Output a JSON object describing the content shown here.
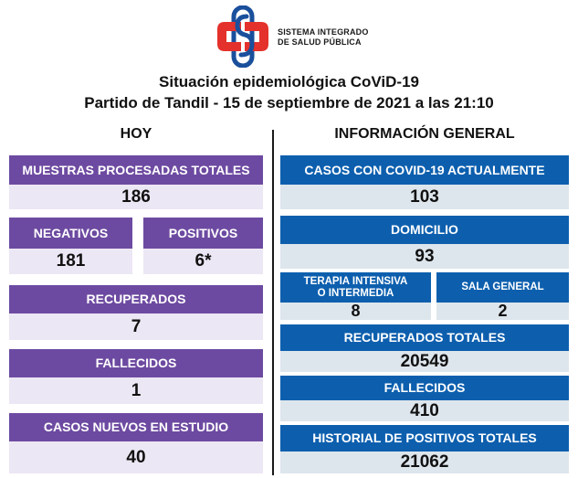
{
  "logo": {
    "line1": "SISTEMA INTEGRADO",
    "line2": "DE SALUD PÚBLICA",
    "colors": {
      "red": "#e4312b",
      "blue": "#1a4f9c"
    }
  },
  "header": {
    "title": "Situación epidemiológica CoViD-19",
    "subtitle": "Partido de Tandil - 15 de septiembre de 2021 a las 21:10"
  },
  "hoy": {
    "heading": "HOY",
    "muestras": {
      "label": "MUESTRAS PROCESADAS TOTALES",
      "value": "186"
    },
    "negativos": {
      "label": "NEGATIVOS",
      "value": "181"
    },
    "positivos": {
      "label": "POSITIVOS",
      "value": "6*"
    },
    "recuperados": {
      "label": "RECUPERADOS",
      "value": "7"
    },
    "fallecidos": {
      "label": "FALLECIDOS",
      "value": "1"
    },
    "casos_nuevos": {
      "label": "CASOS NUEVOS EN ESTUDIO",
      "value": "40"
    }
  },
  "general": {
    "heading": "INFORMACIÓN GENERAL",
    "casos_actuales": {
      "label": "CASOS CON COVID-19 ACTUALMENTE",
      "value": "103"
    },
    "domicilio": {
      "label": "DOMICILIO",
      "value": "93"
    },
    "terapia": {
      "label_line1": "TERAPIA INTENSIVA",
      "label_line2": "O INTERMEDIA",
      "value": "8"
    },
    "sala_general": {
      "label": "SALA GENERAL",
      "value": "2"
    },
    "recuperados_totales": {
      "label": "RECUPERADOS TOTALES",
      "value": "20549"
    },
    "fallecidos": {
      "label": "FALLECIDOS",
      "value": "410"
    },
    "historial": {
      "label": "HISTORIAL DE POSITIVOS TOTALES",
      "value": "21062"
    }
  },
  "colors": {
    "purple_header": "#6d4aa1",
    "purple_value_bg": "#ece7f4",
    "blue_header": "#0d5fae",
    "blue_value_bg": "#dde6ec"
  }
}
